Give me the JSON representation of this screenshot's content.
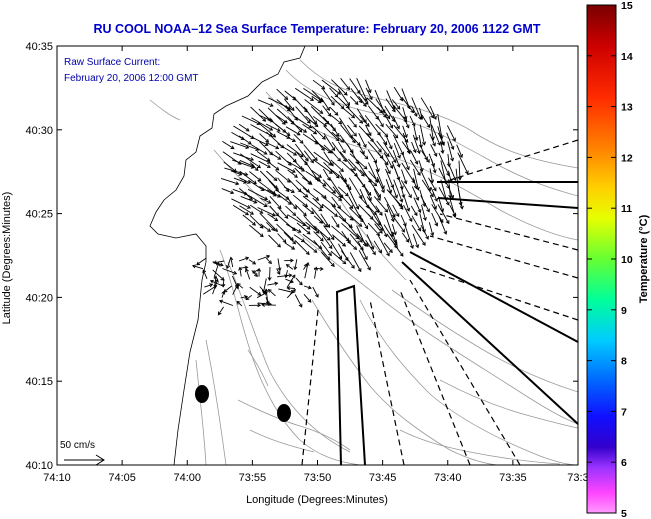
{
  "title": "RU COOL  NOAA–12  Sea Surface Temperature:  February 20, 2006 1122 GMT",
  "overlay": {
    "line1": "Raw Surface Current:",
    "line2": "February 20, 2006 12:00 GMT"
  },
  "scale_label": "50 cm/s",
  "axes": {
    "xlabel": "Longitude (Degrees:Minutes)",
    "ylabel": "Latitude (Degrees:Minutes)",
    "x_ticks": [
      "74:10",
      "74:05",
      "74:00",
      "73:55",
      "73:50",
      "73:45",
      "73:40",
      "73:35",
      "73:3"
    ],
    "y_ticks": [
      "40:35",
      "40:30",
      "40:25",
      "40:20",
      "40:15",
      "40:10"
    ]
  },
  "colorbar": {
    "label": "Temperature (°C)",
    "min": 5,
    "max": 15,
    "ticks": [
      "15",
      "14",
      "13",
      "12",
      "11",
      "10",
      "9",
      "8",
      "7",
      "6",
      "5"
    ]
  },
  "colors": {
    "title": "#0000cc",
    "overlay_text": "#0000aa",
    "frame": "#000000",
    "contour": "#9a9a9a"
  }
}
